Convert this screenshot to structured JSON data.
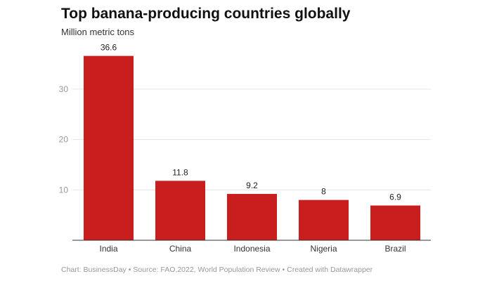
{
  "chart_data": {
    "type": "bar",
    "title": "Top banana-producing countries globally",
    "subtitle": "Million metric tons",
    "categories": [
      "India",
      "China",
      "Indonesia",
      "Nigeria",
      "Brazil"
    ],
    "values": [
      36.6,
      11.8,
      9.2,
      8,
      6.9
    ],
    "yticks": [
      10,
      20,
      30
    ],
    "ylim": [
      0,
      40
    ],
    "grid": true,
    "bar_color": "#c91e1e",
    "footer": "Chart: BusinessDay • Source: FAO,2022, World Population Review • Created with Datawrapper"
  }
}
